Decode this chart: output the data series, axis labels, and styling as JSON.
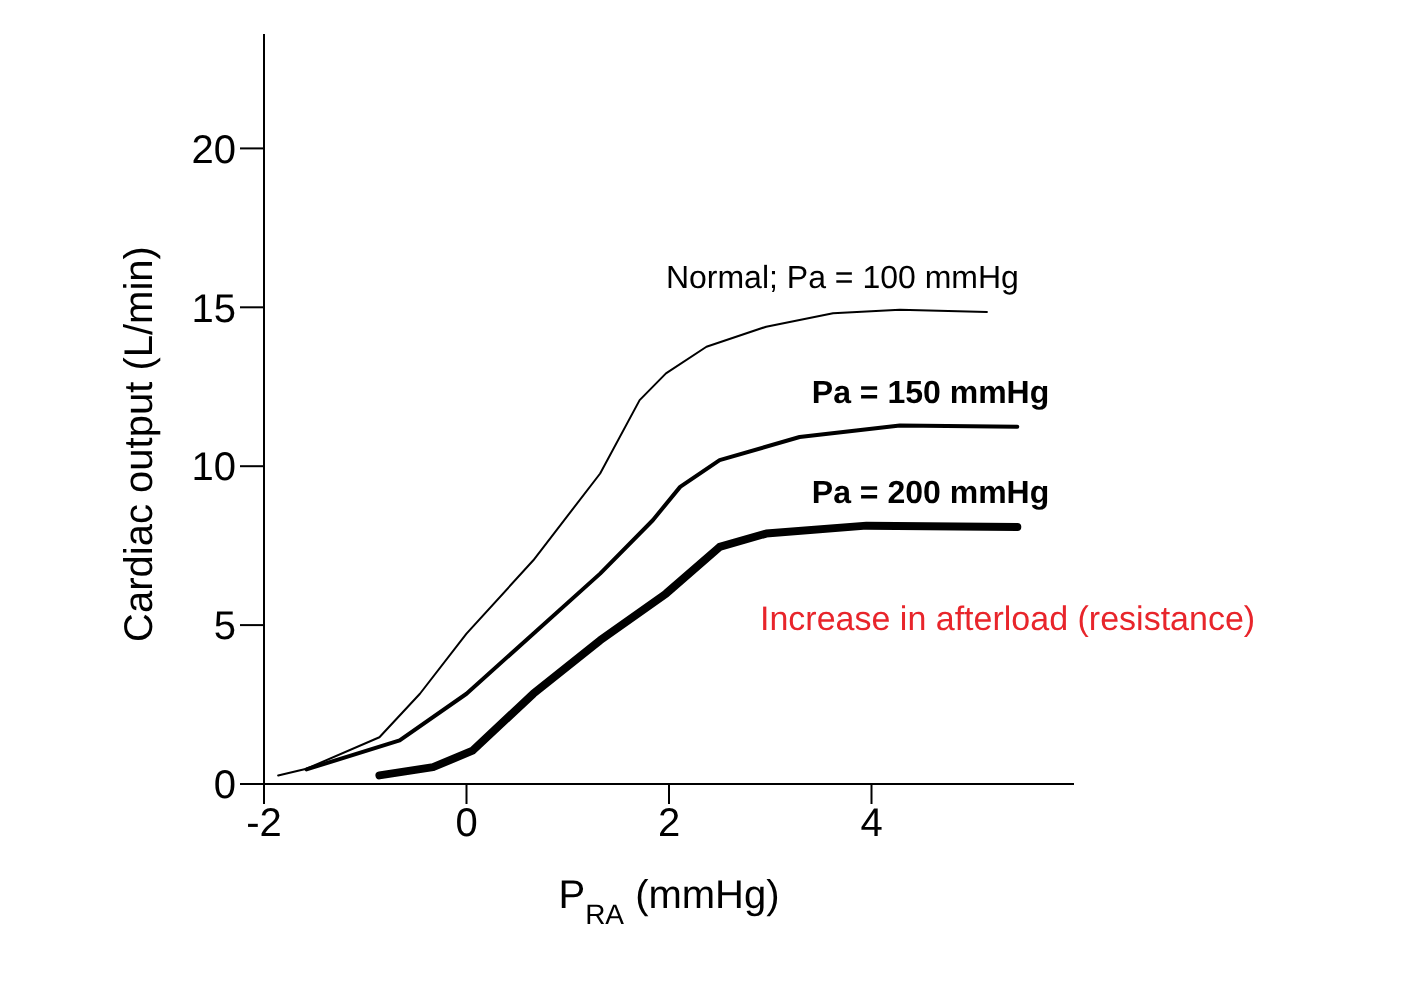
{
  "chart_data": {
    "type": "line",
    "xlabel": "P$_{RA}$ (mmHg)",
    "ylabel": "Cardiac output (L/min)",
    "xlim": [
      -2,
      6
    ],
    "xticks": [
      -2,
      0,
      2,
      4
    ],
    "ylim": [
      0,
      23.6
    ],
    "yticks": [
      0,
      5,
      10,
      15,
      20
    ],
    "grid": false,
    "legend": false,
    "marker": "none",
    "line_style": "solid",
    "annotations": [
      "Increase in afterload (resistance)"
    ],
    "series": [
      {
        "name": "Normal; Pa = 100 mmHg",
        "color": "#000000",
        "x": [
          -1.86,
          -1.58,
          -0.86,
          -0.46,
          0,
          0.66,
          1.32,
          1.71,
          1.97,
          2.37,
          2.96,
          3.62,
          4.28,
          5.14
        ],
        "values": [
          0.27,
          0.48,
          1.47,
          2.84,
          4.73,
          7.04,
          9.77,
          12.08,
          12.92,
          13.76,
          14.39,
          14.81,
          14.92,
          14.85
        ]
      },
      {
        "name": "Pa = 150 mmHg",
        "color": "#000000",
        "x": [
          -1.58,
          -0.66,
          0,
          0.66,
          1.32,
          1.84,
          2.11,
          2.5,
          3.29,
          4.28,
          5.44
        ],
        "values": [
          0.46,
          1.37,
          2.84,
          4.73,
          6.62,
          8.3,
          9.35,
          10.19,
          10.92,
          11.28,
          11.24
        ]
      },
      {
        "name": "Pa = 200 mmHg",
        "color": "#000000",
        "x": [
          -0.86,
          -0.33,
          0.06,
          0.66,
          1.32,
          1.97,
          2.5,
          2.96,
          3.95,
          5.44
        ],
        "values": [
          0.27,
          0.53,
          1.05,
          2.84,
          4.52,
          5.99,
          7.46,
          7.88,
          8.13,
          8.09
        ]
      }
    ]
  }
}
